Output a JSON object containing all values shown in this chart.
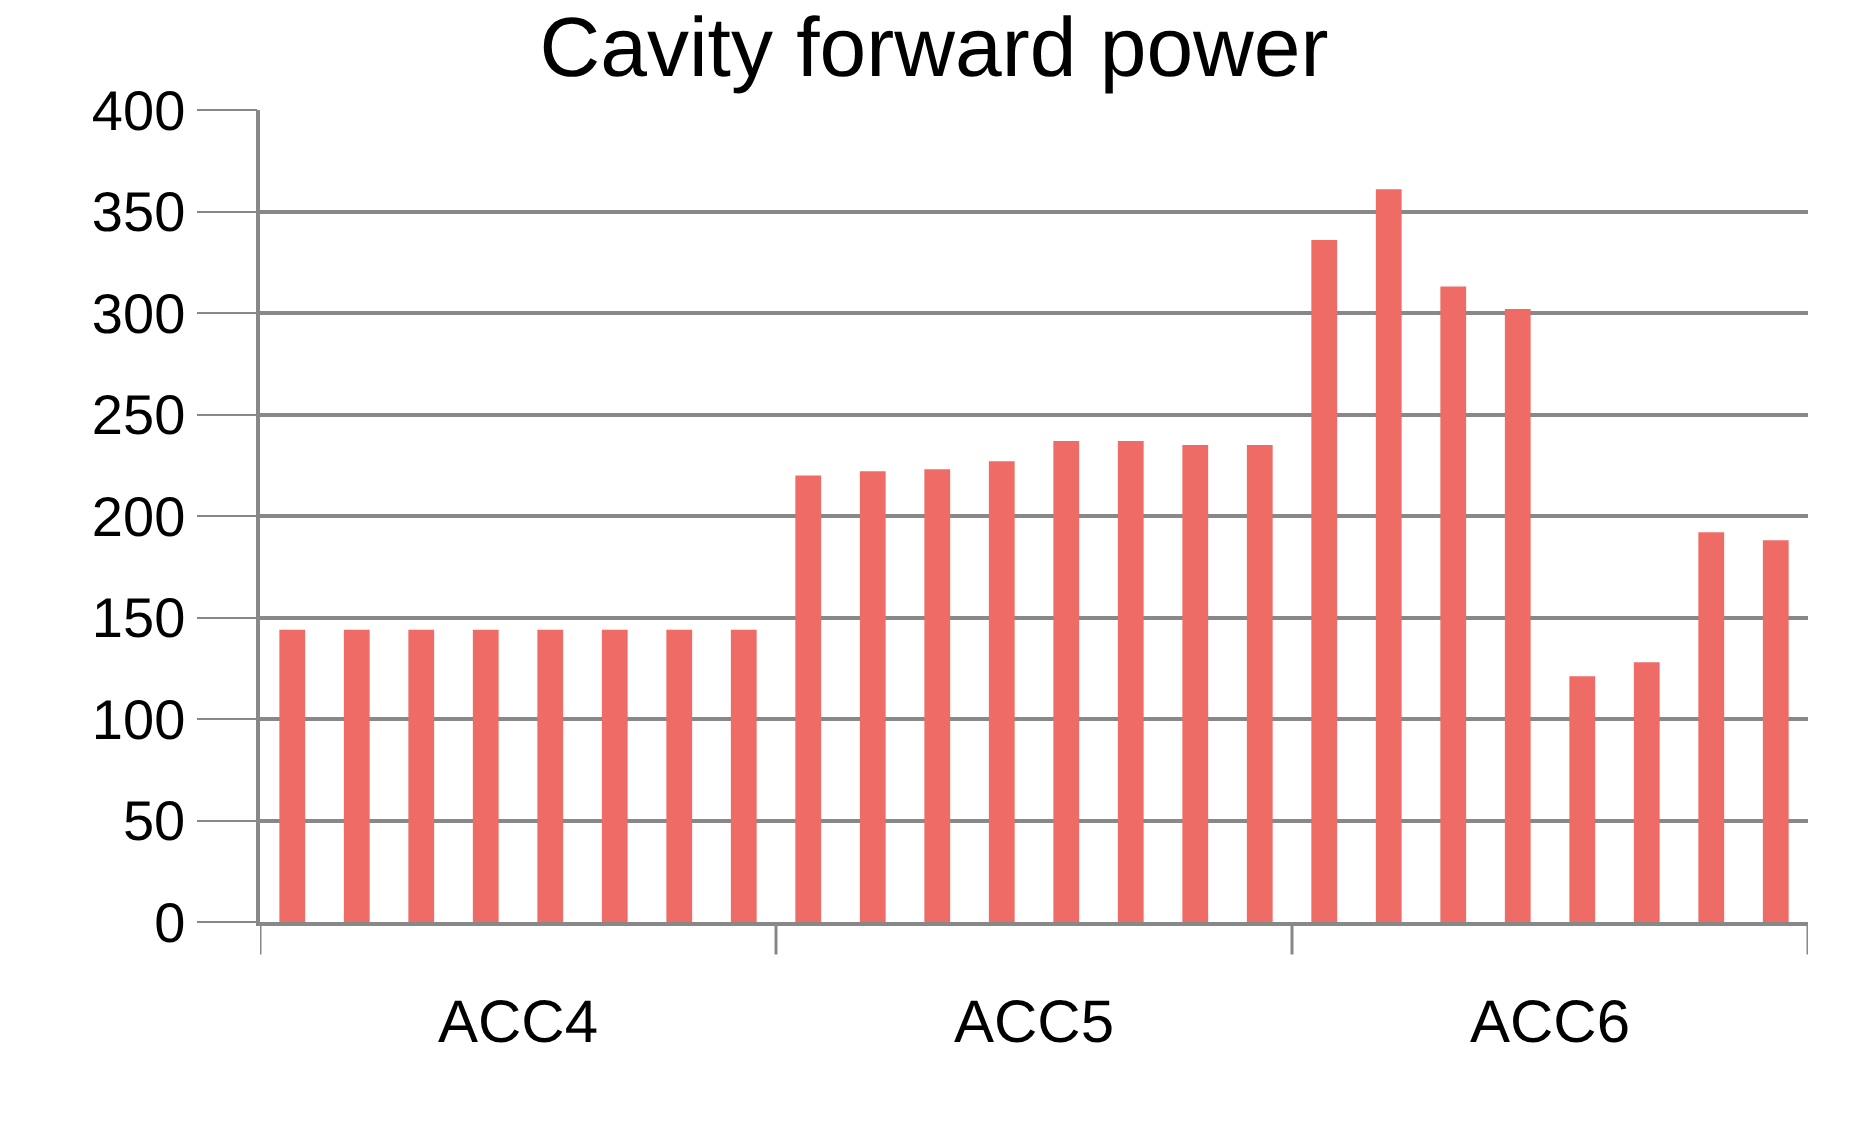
{
  "chart_data": {
    "type": "bar",
    "title": "Cavity forward power",
    "categories": [
      null,
      null,
      null,
      null,
      null,
      null,
      null,
      null,
      null,
      null,
      null,
      null,
      null,
      null,
      null,
      null,
      null,
      null,
      null,
      null,
      null,
      null,
      null,
      null
    ],
    "values": [
      144,
      144,
      144,
      144,
      144,
      144,
      144,
      144,
      220,
      222,
      223,
      227,
      237,
      237,
      235,
      235,
      336,
      361,
      313,
      302,
      121,
      128,
      192,
      188
    ],
    "color": "#ee6b66",
    "annotations": [
      "ACC4",
      "ACC5",
      "ACC6"
    ],
    "ylim": [
      0,
      400
    ],
    "yticks": [
      0,
      50,
      100,
      150,
      200,
      250,
      300,
      350,
      400
    ],
    "grid": "y"
  }
}
